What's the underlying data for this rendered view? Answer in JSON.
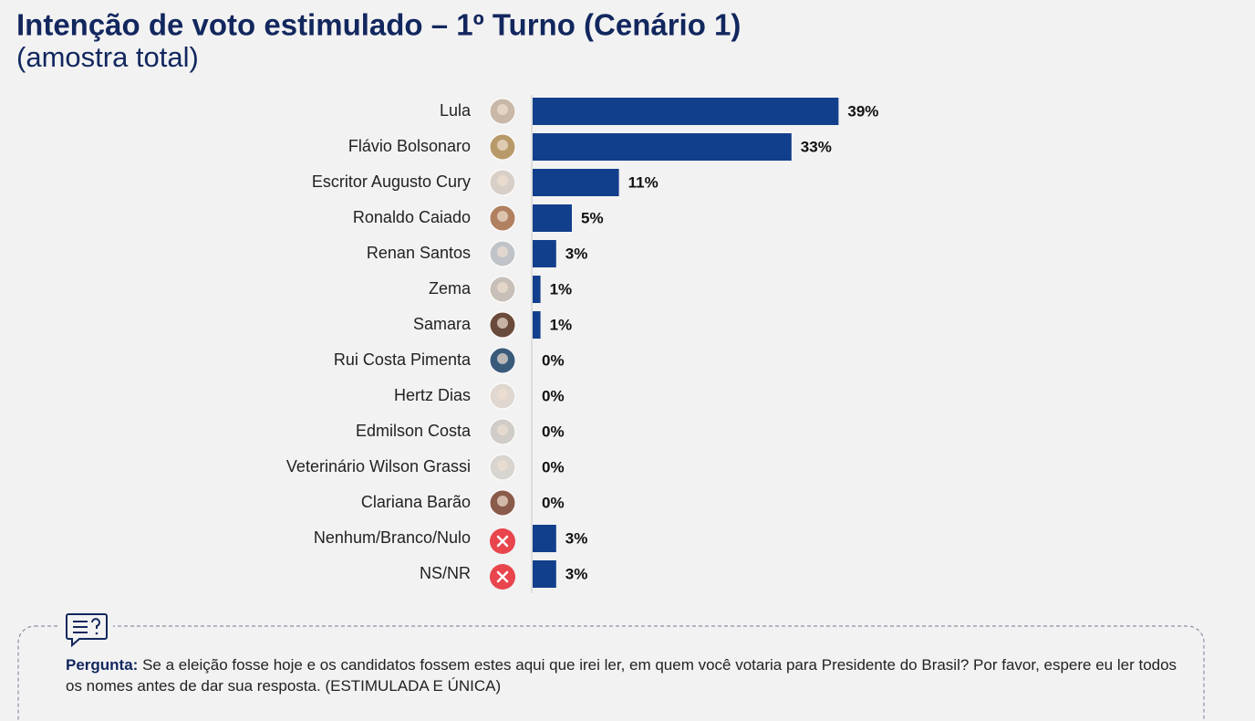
{
  "chart_data": {
    "type": "hbar",
    "title": "Intenção de voto estimulado – 1º Turno (Cenário 1)",
    "subtitle": "(amostra total)",
    "categories": [
      "Lula",
      "Flávio Bolsonaro",
      "Escritor Augusto Cury",
      "Ronaldo Caiado",
      "Renan Santos",
      "Zema",
      "Samara",
      "Rui Costa Pimenta",
      "Hertz Dias",
      "Edmilson Costa",
      "Veterinário Wilson Grassi",
      "Clariana Barão",
      "Nenhum/Branco/Nulo",
      "NS/NR"
    ],
    "values": [
      39,
      33,
      11,
      5,
      3,
      1,
      1,
      0,
      0,
      0,
      0,
      0,
      3,
      3
    ],
    "value_labels": [
      "39%",
      "33%",
      "11%",
      "5%",
      "3%",
      "1%",
      "1%",
      "0%",
      "0%",
      "0%",
      "0%",
      "0%",
      "3%",
      "3%"
    ],
    "color": "#123f8c",
    "question_label": "Pergunta:",
    "question": "Se a eleição fosse hoje e os candidatos fossem estes aqui que irei ler, em quem você votaria para Presidente do Brasil? Por favor, espere eu ler todos os nomes antes de dar sua resposta. (ESTIMULADA E ÚNICA)"
  }
}
